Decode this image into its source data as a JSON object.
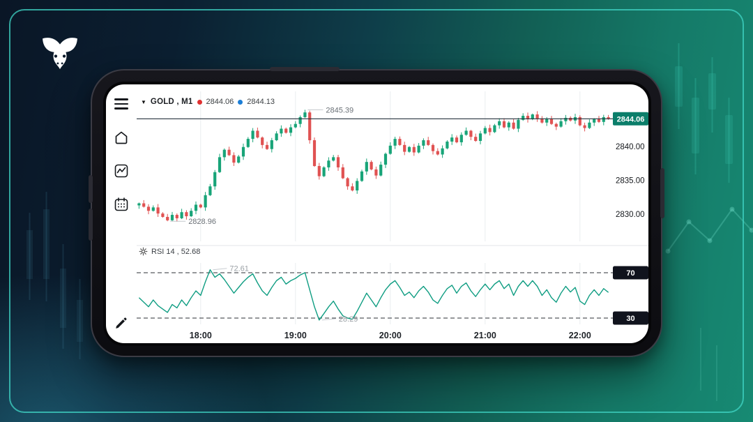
{
  "brand": {
    "logo_icon": "bull-icon"
  },
  "app": {
    "header": {
      "dropdown_glyph": "▼",
      "symbol": "GOLD , M1",
      "bid": "2844.06",
      "ask": "2844.13",
      "bid_dot_color": "#e03131",
      "ask_dot_color": "#1c7ed6"
    },
    "sidebar_icons": [
      "menu-icon",
      "home-icon",
      "line-chart-icon",
      "calendar-icon",
      "pencil-icon"
    ],
    "rsi": {
      "header_label": "RSI 14 , 52.68",
      "settings_icon": "gear-icon"
    }
  },
  "colors": {
    "up": "#18a478",
    "down": "#e05252",
    "rsi_line": "#0f9d82",
    "current_line": "#22303a",
    "current_badge": "#0b7e6a",
    "level_badge": "#10131d",
    "grid": "#e9ecef",
    "accent_border": "#40d6c6"
  },
  "chart_data": [
    {
      "type": "candlestick",
      "title": "GOLD M1",
      "time_ticks": [
        "18:00",
        "19:00",
        "20:00",
        "21:00",
        "22:00"
      ],
      "tick_indices": [
        13,
        33,
        53,
        73,
        93
      ],
      "ylim": [
        2826.0,
        2848.1
      ],
      "y_ticks": [
        {
          "price": 2840,
          "label": "2840.00"
        },
        {
          "price": 2835,
          "label": "2835.00"
        },
        {
          "price": 2830,
          "label": "2830.00"
        }
      ],
      "current_price": {
        "value": 2844.06,
        "label": "2844.06"
      },
      "annotations": [
        {
          "index": 35,
          "price": 2845.39,
          "label": "2845.39",
          "side": "high"
        },
        {
          "index": 6,
          "price": 2828.96,
          "label": "2828.96",
          "side": "low"
        }
      ],
      "closes": [
        2831.6,
        2831.1,
        2830.5,
        2831.0,
        2830.1,
        2829.6,
        2829.1,
        2829.9,
        2829.4,
        2830.3,
        2829.7,
        2830.5,
        2831.4,
        2831.0,
        2832.8,
        2834.1,
        2836.2,
        2838.4,
        2839.5,
        2838.7,
        2837.6,
        2838.5,
        2839.9,
        2841.1,
        2842.3,
        2841.3,
        2840.2,
        2839.6,
        2840.9,
        2841.9,
        2842.6,
        2842.0,
        2842.8,
        2843.3,
        2844.3,
        2845.0,
        2840.9,
        2837.1,
        2835.6,
        2836.9,
        2837.9,
        2838.4,
        2836.9,
        2835.3,
        2834.1,
        2833.5,
        2834.9,
        2836.3,
        2837.7,
        2836.6,
        2835.7,
        2837.3,
        2838.9,
        2840.1,
        2841.1,
        2840.2,
        2839.2,
        2839.9,
        2839.1,
        2840.1,
        2840.9,
        2840.2,
        2839.3,
        2838.8,
        2839.7,
        2840.7,
        2841.3,
        2840.6,
        2841.7,
        2842.3,
        2841.4,
        2840.8,
        2841.9,
        2842.7,
        2842.1,
        2843.1,
        2843.7,
        2842.8,
        2843.5,
        2842.6,
        2843.9,
        2844.5,
        2844.0,
        2844.7,
        2844.1,
        2843.5,
        2844.0,
        2843.3,
        2842.9,
        2843.7,
        2844.2,
        2843.8,
        2844.3,
        2843.1,
        2842.7,
        2843.5,
        2844.0,
        2843.6,
        2844.3,
        2844.06
      ]
    },
    {
      "type": "line",
      "title": "RSI 14",
      "last_value": 52.68,
      "ylim": [
        24.5,
        78.6
      ],
      "levels": [
        {
          "value": 70,
          "label": "70"
        },
        {
          "value": 30,
          "label": "30"
        }
      ],
      "annotations": [
        {
          "index": 15,
          "value": 72.61,
          "label": "72.61"
        },
        {
          "index": 38,
          "value": 28.29,
          "label": "28.29"
        }
      ],
      "values": [
        48,
        44,
        40,
        46,
        41,
        38,
        35,
        42,
        39,
        46,
        41,
        48,
        54,
        50,
        62,
        72.61,
        66,
        69,
        64,
        58,
        52,
        57,
        62,
        66,
        69,
        61,
        54,
        50,
        57,
        63,
        66,
        60,
        63,
        65,
        68,
        70,
        55,
        40,
        28.29,
        34,
        40,
        45,
        38,
        32,
        30,
        29,
        36,
        44,
        52,
        46,
        40,
        48,
        55,
        60,
        63,
        57,
        50,
        53,
        48,
        54,
        58,
        53,
        46,
        43,
        50,
        56,
        59,
        52,
        58,
        61,
        54,
        49,
        55,
        60,
        55,
        60,
        63,
        56,
        60,
        50,
        58,
        63,
        58,
        63,
        58,
        50,
        55,
        48,
        44,
        52,
        58,
        53,
        57,
        45,
        42,
        50,
        55,
        50,
        56,
        52.68
      ]
    }
  ]
}
